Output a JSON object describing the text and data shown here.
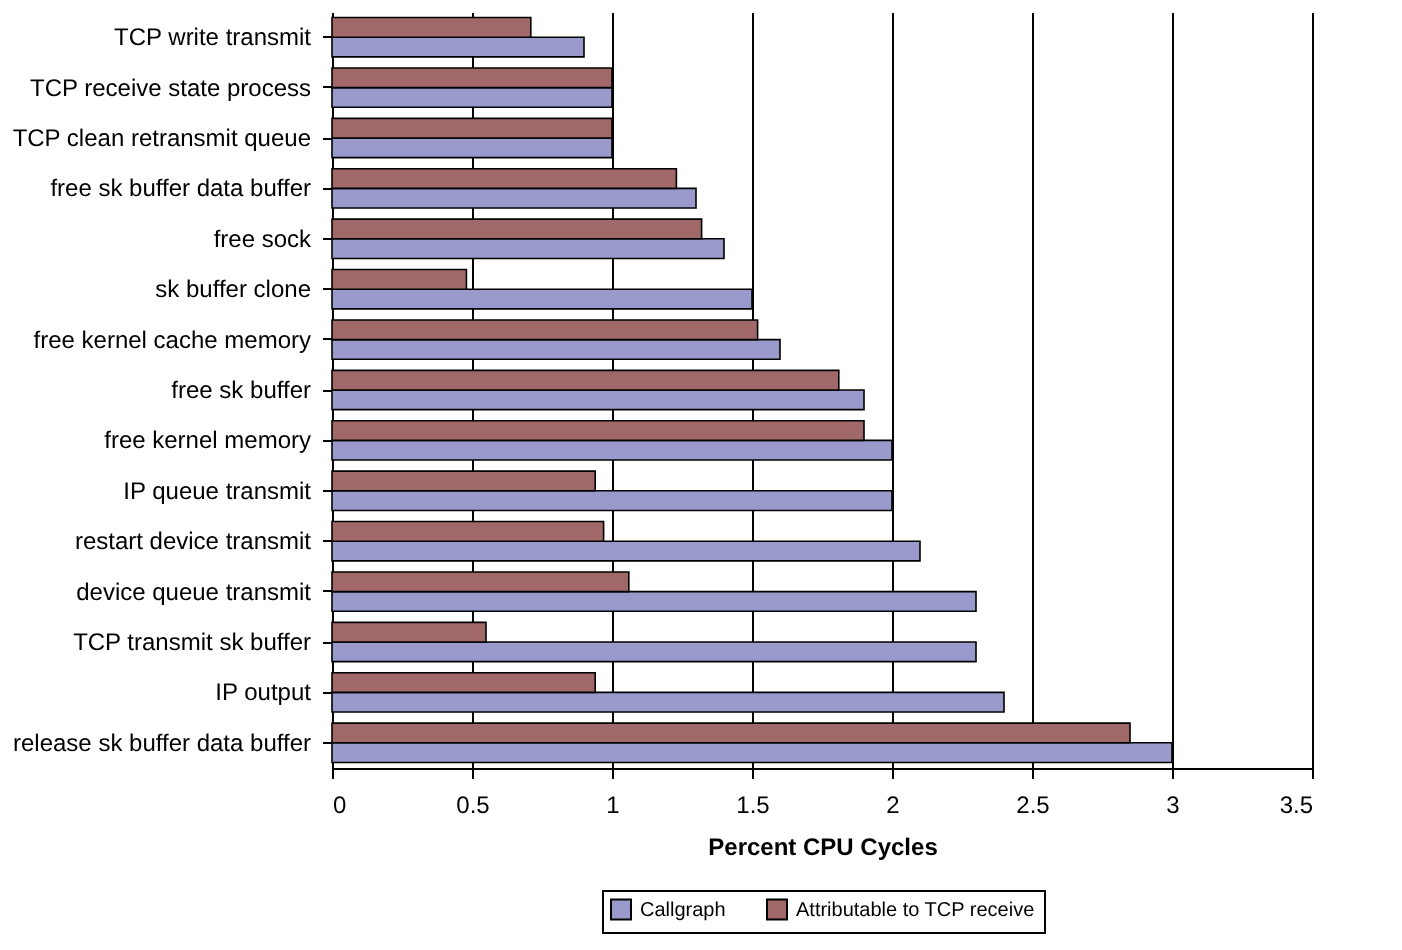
{
  "chart_data": {
    "type": "bar",
    "orientation": "horizontal",
    "xlabel": "Percent CPU Cycles",
    "categories": [
      "TCP write transmit",
      "TCP receive state process",
      "TCP clean retransmit queue",
      "free sk buffer data buffer",
      "free sock",
      "sk buffer clone",
      "free kernel cache memory",
      "free sk  buffer",
      "free kernel memory",
      "IP queue transmit",
      "restart device transmit",
      "device queue transmit",
      "TCP transmit sk buffer",
      "IP output",
      "release sk buffer data buffer"
    ],
    "series": [
      {
        "name": "Callgraph",
        "color": "#9999cc",
        "values": [
          0.9,
          1.0,
          1.0,
          1.3,
          1.4,
          1.5,
          1.6,
          1.9,
          2.0,
          2.0,
          2.1,
          2.3,
          2.3,
          2.4,
          3.0
        ]
      },
      {
        "name": "Attributable to TCP receive",
        "color": "#a06868",
        "values": [
          0.71,
          1.0,
          1.0,
          1.23,
          1.32,
          0.48,
          1.52,
          1.81,
          1.9,
          0.94,
          0.97,
          1.06,
          0.55,
          0.94,
          2.85
        ]
      }
    ],
    "xlim": [
      0,
      3.5
    ],
    "xticks": [
      0,
      0.5,
      1,
      1.5,
      2,
      2.5,
      3,
      3.5
    ],
    "grid": "x",
    "legend": "bottom"
  }
}
